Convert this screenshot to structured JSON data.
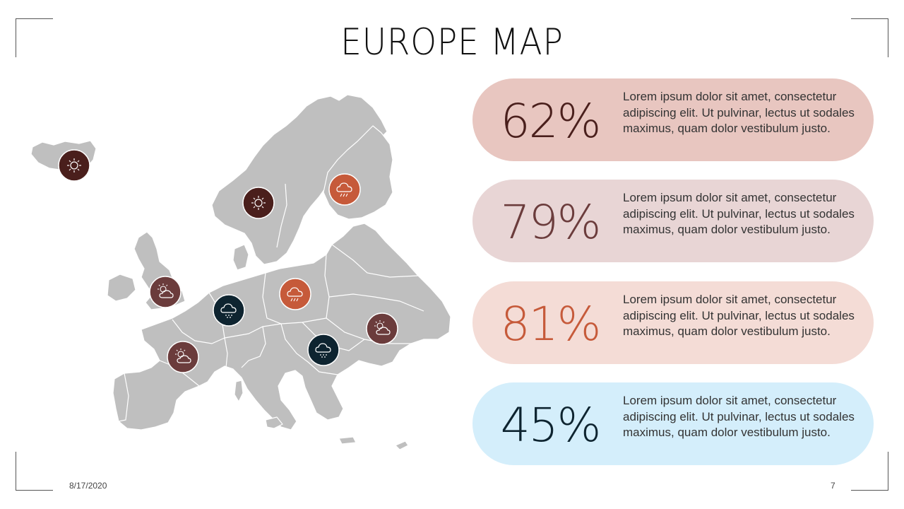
{
  "slide": {
    "title": "EUROPE MAP",
    "date": "8/17/2020",
    "page_number": "7"
  },
  "colors": {
    "map_fill": "#bfbfbf",
    "dark_brown": "#4a1f1c",
    "mauve": "#6b3c3c",
    "orange": "#c65a3a",
    "navy": "#0e2430"
  },
  "stats": [
    {
      "value": "62%",
      "text": "Lorem ipsum dolor sit amet, consectetur adipiscing elit. Ut pulvinar, lectus ut sodales maximus, quam dolor vestibulum justo.",
      "bg": "#e8c6c0",
      "color": "#4a1f1c"
    },
    {
      "value": "79%",
      "text": "Lorem ipsum dolor sit amet, consectetur adipiscing elit. Ut pulvinar, lectus ut sodales maximus, quam dolor vestibulum justo.",
      "bg": "#e8d5d5",
      "color": "#6b3c3c"
    },
    {
      "value": "81%",
      "text": "Lorem ipsum dolor sit amet, consectetur adipiscing elit. Ut pulvinar, lectus ut sodales maximus, quam dolor vestibulum justo.",
      "bg": "#f4dcd6",
      "color": "#c65a3a"
    },
    {
      "value": "45%",
      "text": "Lorem ipsum dolor sit amet, consectetur adipiscing elit. Ut pulvinar, lectus ut sodales maximus, quam dolor vestibulum justo.",
      "bg": "#d4eefb",
      "color": "#0e2430"
    }
  ],
  "markers": [
    {
      "region": "Iceland",
      "icon": "sun-icon",
      "color": "#4a1f1c"
    },
    {
      "region": "Scandinavia",
      "icon": "sun-icon",
      "color": "#4a1f1c"
    },
    {
      "region": "Finland",
      "icon": "rain-lightning-icon",
      "color": "#c65a3a"
    },
    {
      "region": "United Kingdom",
      "icon": "partly-cloudy-icon",
      "color": "#6b3c3c"
    },
    {
      "region": "Belgium",
      "icon": "rain-cloud-icon",
      "color": "#0e2430"
    },
    {
      "region": "Poland",
      "icon": "rain-lightning-icon",
      "color": "#c65a3a"
    },
    {
      "region": "Ukraine",
      "icon": "partly-cloudy-icon",
      "color": "#6b3c3c"
    },
    {
      "region": "France",
      "icon": "partly-cloudy-icon",
      "color": "#6b3c3c"
    },
    {
      "region": "Balkans",
      "icon": "rain-cloud-icon",
      "color": "#0e2430"
    }
  ]
}
